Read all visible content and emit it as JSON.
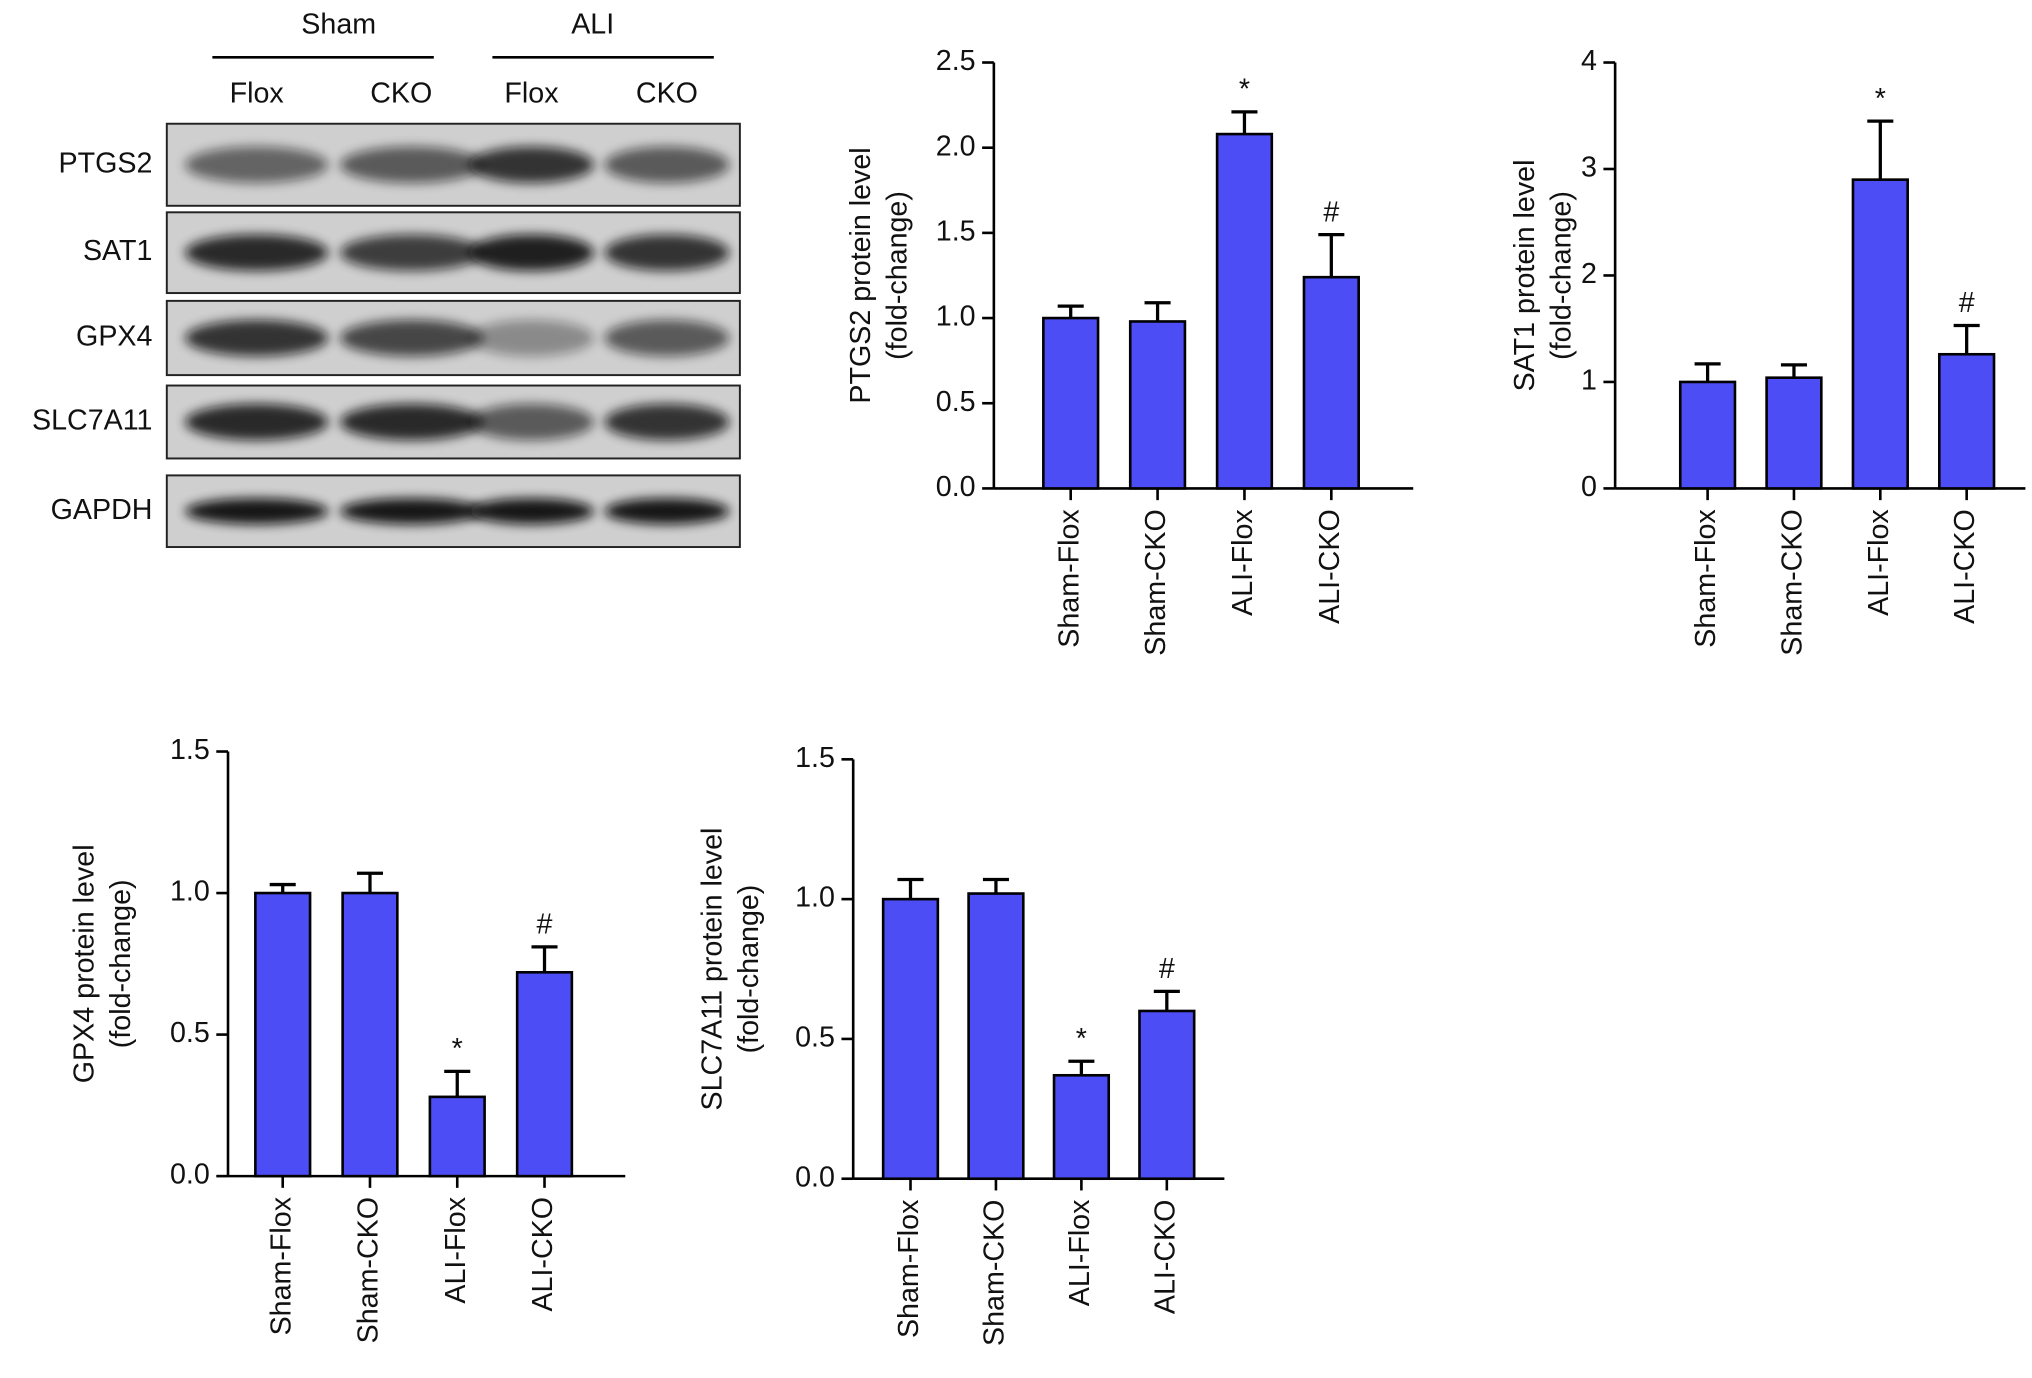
{
  "blot": {
    "groups": [
      "Sham",
      "ALI"
    ],
    "lanes": [
      "Flox",
      "CKO",
      "Flox",
      "CKO"
    ],
    "proteins": [
      "PTGS2",
      "SAT1",
      "GPX4",
      "SLC7A11",
      "GAPDH"
    ]
  },
  "chart_data": [
    {
      "type": "bar",
      "y_label": [
        "PTGS2 protein level",
        "(fold-change)"
      ],
      "categories": [
        "Sham-Flox",
        "Sham-CKO",
        "ALI-Flox",
        "ALI-CKO"
      ],
      "values": [
        1.0,
        0.98,
        2.08,
        1.24
      ],
      "errors": [
        0.07,
        0.11,
        0.13,
        0.25
      ],
      "annotations": [
        null,
        null,
        "*",
        "#"
      ],
      "color": "#4d4df5",
      "ylim": [
        0,
        2.5
      ],
      "yticks": [
        {
          "value": 0,
          "label": "0.0"
        },
        0.5,
        {
          "value": 1,
          "label": "1.0"
        },
        1.5,
        {
          "value": 2,
          "label": "2.0"
        },
        2.5
      ]
    },
    {
      "type": "bar",
      "y_label": [
        "SAT1 protein level",
        "(fold-change)"
      ],
      "categories": [
        "Sham-Flox",
        "Sham-CKO",
        "ALI-Flox",
        "ALI-CKO"
      ],
      "values": [
        1.0,
        1.04,
        2.9,
        1.26
      ],
      "errors": [
        0.17,
        0.12,
        0.55,
        0.27
      ],
      "annotations": [
        null,
        null,
        "*",
        "#"
      ],
      "color": "#4d4df5",
      "ylim": [
        0,
        4
      ],
      "yticks": [
        0,
        1,
        2,
        3,
        4
      ]
    },
    {
      "type": "bar",
      "y_label": [
        "GPX4 protein level",
        "(fold-change)"
      ],
      "categories": [
        "Sham-Flox",
        "Sham-CKO",
        "ALI-Flox",
        "ALI-CKO"
      ],
      "values": [
        1.0,
        1.0,
        0.28,
        0.72
      ],
      "errors": [
        0.03,
        0.07,
        0.09,
        0.09
      ],
      "annotations": [
        null,
        null,
        "*",
        "#"
      ],
      "color": "#4d4df5",
      "ylim": [
        0,
        1.5
      ],
      "yticks": [
        {
          "value": 0,
          "label": "0.0"
        },
        0.5,
        {
          "value": 1,
          "label": "1.0"
        },
        1.5
      ]
    },
    {
      "type": "bar",
      "y_label": [
        "SLC7A11 protein level",
        "(fold-change)"
      ],
      "categories": [
        "Sham-Flox",
        "Sham-CKO",
        "ALI-Flox",
        "ALI-CKO"
      ],
      "values": [
        1.0,
        1.02,
        0.37,
        0.6
      ],
      "errors": [
        0.07,
        0.05,
        0.05,
        0.07
      ],
      "annotations": [
        null,
        null,
        "*",
        "#"
      ],
      "color": "#4d4df5",
      "ylim": [
        0,
        1.5
      ],
      "yticks": [
        {
          "value": 0,
          "label": "0.0"
        },
        0.5,
        {
          "value": 1,
          "label": "1.0"
        },
        1.5
      ]
    }
  ]
}
